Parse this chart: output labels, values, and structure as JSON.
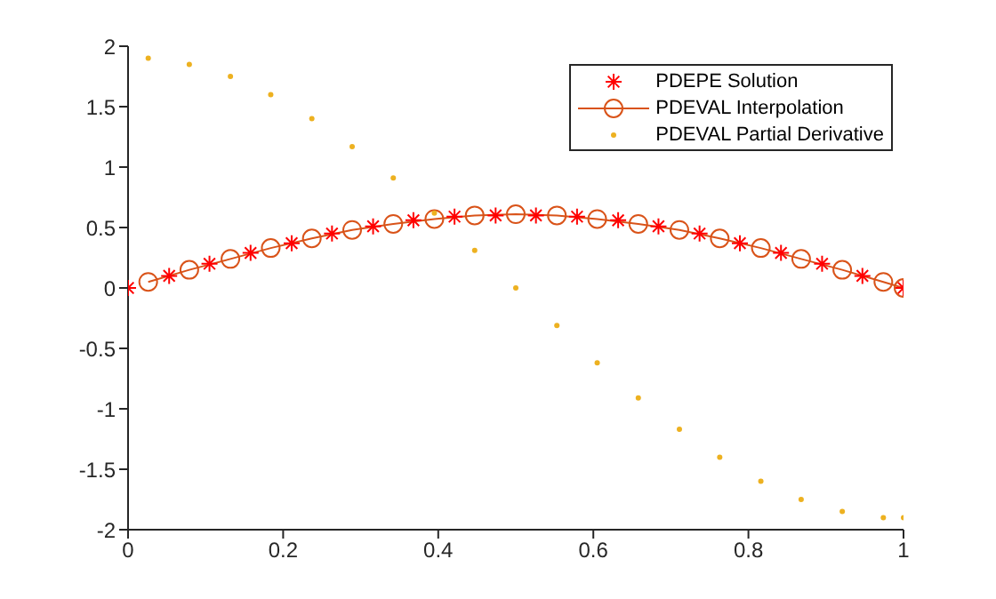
{
  "chart_data": {
    "type": "line",
    "xlim": [
      0,
      1
    ],
    "xticks": [
      0,
      0.2,
      0.4,
      0.6,
      0.8,
      1
    ],
    "ylim": [
      -2,
      2
    ],
    "yticks": [
      -2,
      -1.5,
      -1,
      -0.5,
      0,
      0.5,
      1,
      1.5,
      2
    ],
    "grid": false,
    "legend": "top right",
    "series": [
      {
        "name": "PDEPE Solution",
        "type": "scatter",
        "marker": "cross",
        "color": "#ff0000",
        "x": [
          0,
          0.053,
          0.105,
          0.158,
          0.211,
          0.263,
          0.316,
          0.368,
          0.421,
          0.474,
          0.526,
          0.579,
          0.632,
          0.684,
          0.737,
          0.789,
          0.842,
          0.895,
          0.947,
          1
        ],
        "values": [
          0,
          0.1,
          0.2,
          0.29,
          0.37,
          0.45,
          0.51,
          0.56,
          0.59,
          0.6,
          0.6,
          0.59,
          0.56,
          0.51,
          0.45,
          0.37,
          0.29,
          0.2,
          0.1,
          0
        ]
      },
      {
        "name": "PDEVAL Interpolation",
        "marker": "circle",
        "color": "#d95319",
        "x": [
          0.026,
          0.079,
          0.132,
          0.184,
          0.237,
          0.289,
          0.342,
          0.395,
          0.447,
          0.5,
          0.553,
          0.605,
          0.658,
          0.711,
          0.763,
          0.816,
          0.868,
          0.921,
          0.974,
          1
        ],
        "values": [
          0.05,
          0.15,
          0.24,
          0.33,
          0.41,
          0.48,
          0.53,
          0.57,
          0.6,
          0.61,
          0.6,
          0.57,
          0.53,
          0.48,
          0.41,
          0.33,
          0.24,
          0.15,
          0.05,
          0
        ]
      },
      {
        "name": "PDEVAL Partial Derivative",
        "type": "scatter",
        "marker": "circle",
        "color": "#edb120",
        "x": [
          0.026,
          0.079,
          0.132,
          0.184,
          0.237,
          0.289,
          0.342,
          0.395,
          0.447,
          0.5,
          0.553,
          0.605,
          0.658,
          0.711,
          0.763,
          0.816,
          0.868,
          0.921,
          0.974,
          1
        ],
        "values": [
          1.9,
          1.85,
          1.75,
          1.6,
          1.4,
          1.17,
          0.91,
          0.62,
          0.31,
          0,
          -0.31,
          -0.62,
          -0.91,
          -1.17,
          -1.4,
          -1.6,
          -1.75,
          -1.85,
          -1.9,
          -1.9
        ]
      }
    ]
  }
}
